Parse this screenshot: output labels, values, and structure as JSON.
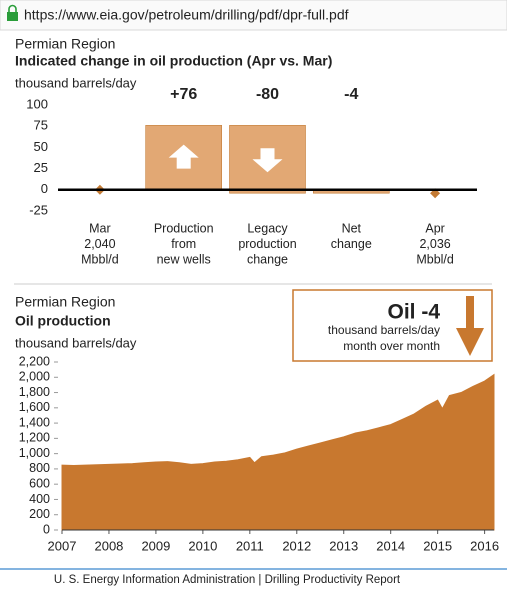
{
  "url": "https://www.eia.gov/petroleum/drilling/pdf/dpr-full.pdf",
  "footer": "U. S. Energy Information Administration  |  Drilling Productivity Report",
  "chart_data": [
    {
      "type": "waterfall",
      "region": "Permian Region",
      "title": "Indicated change in oil production (Apr vs. Mar)",
      "ylabel": "thousand barrels/day",
      "categories": [
        [
          "Mar",
          "2,040",
          "Mbbl/d"
        ],
        [
          "Production",
          "from",
          "new wells"
        ],
        [
          "Legacy",
          "production",
          "change"
        ],
        [
          "Net",
          "change"
        ],
        [
          "Apr",
          "2,036",
          "Mbbl/d"
        ]
      ],
      "values": [
        0,
        76,
        -80,
        -4,
        -4
      ],
      "kinds": [
        "marker",
        "delta",
        "delta",
        "total",
        "marker"
      ],
      "value_labels": [
        null,
        "+76",
        "-80",
        "-4",
        null
      ],
      "color": "#e2a874",
      "marker_color": "#c37a34",
      "label_color": "#e3a06a",
      "ylim": [
        -25,
        100
      ],
      "yticks": [
        -25,
        0,
        25,
        50,
        75,
        100
      ],
      "grid": false
    },
    {
      "type": "area",
      "region": "Permian Region",
      "title": "Oil production",
      "ylabel": "thousand barrels/day",
      "x": [
        2007,
        2007.25,
        2007.5,
        2007.75,
        2008,
        2008.25,
        2008.5,
        2008.75,
        2009,
        2009.25,
        2009.5,
        2009.75,
        2010,
        2010.25,
        2010.5,
        2010.75,
        2011,
        2011.1,
        2011.25,
        2011.5,
        2011.75,
        2012,
        2012.25,
        2012.5,
        2012.75,
        2013,
        2013.25,
        2013.5,
        2013.75,
        2014,
        2014.25,
        2014.5,
        2014.75,
        2015,
        2015.1,
        2015.25,
        2015.5,
        2015.75,
        2016,
        2016.2
      ],
      "values": [
        850,
        845,
        850,
        855,
        860,
        865,
        870,
        880,
        890,
        895,
        880,
        860,
        870,
        890,
        900,
        920,
        950,
        880,
        960,
        980,
        1010,
        1060,
        1100,
        1140,
        1180,
        1220,
        1270,
        1300,
        1340,
        1380,
        1450,
        1520,
        1620,
        1700,
        1590,
        1760,
        1800,
        1880,
        1950,
        2036
      ],
      "color": "#c8782f",
      "xlim": [
        2007,
        2016.2
      ],
      "xticks": [
        2007,
        2008,
        2009,
        2010,
        2011,
        2012,
        2013,
        2014,
        2015,
        2016
      ],
      "ylim": [
        0,
        2200
      ],
      "yticks": [
        0,
        200,
        400,
        600,
        800,
        {
          "value": 1000,
          "label": "1,000"
        },
        {
          "value": 1200,
          "label": "1,200"
        },
        {
          "value": 1400,
          "label": "1,400"
        },
        {
          "value": 1600,
          "label": "1,600"
        },
        {
          "value": 1800,
          "label": "1,800"
        },
        {
          "value": 2000,
          "label": "2,000"
        },
        {
          "value": 2200,
          "label": "2,200"
        }
      ],
      "annotation": {
        "headline": "Oil -4",
        "lines": [
          "thousand barrels/day",
          "month over month"
        ]
      }
    }
  ]
}
